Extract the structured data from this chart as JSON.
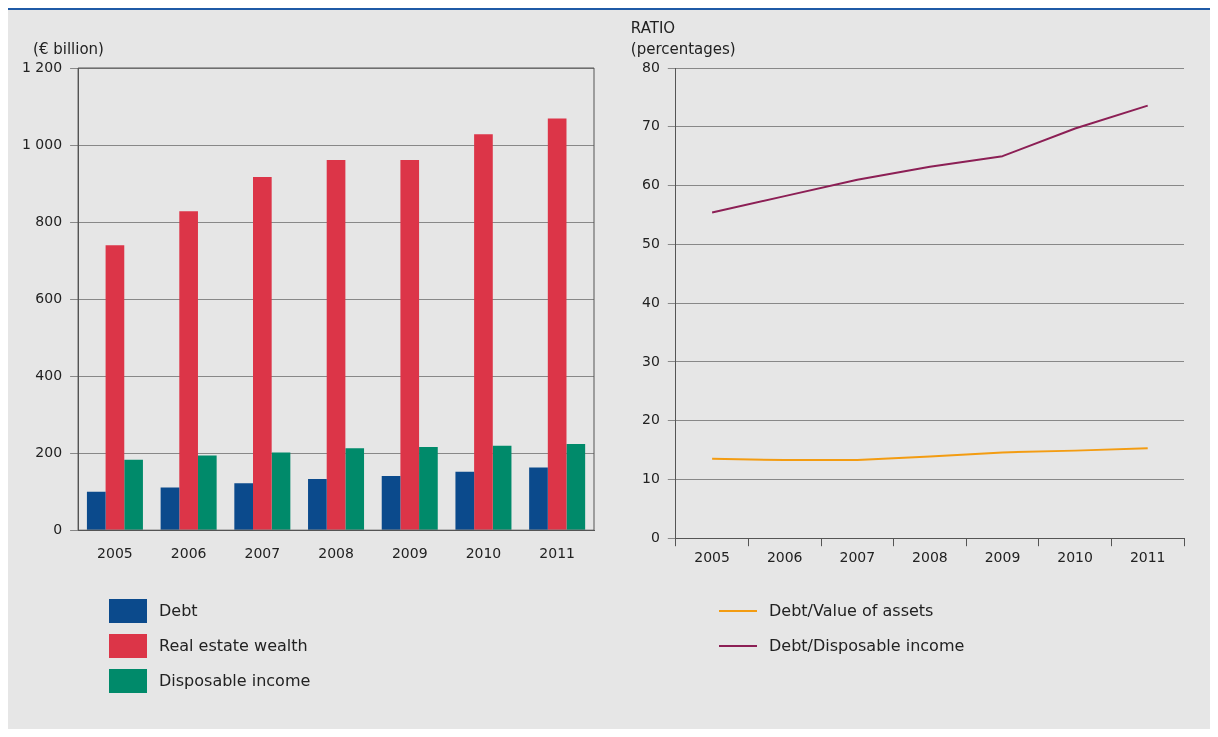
{
  "chart_data": [
    {
      "type": "bar",
      "ylabel": "(€ billion)",
      "categories": [
        "2005",
        "2006",
        "2007",
        "2008",
        "2009",
        "2010",
        "2011"
      ],
      "series": [
        {
          "name": "Debt",
          "color": "#0b4a8c",
          "values": [
            100,
            111,
            122,
            133,
            141,
            152,
            163
          ]
        },
        {
          "name": "Real estate wealth",
          "color": "#dc3548",
          "values": [
            740,
            828,
            917,
            961,
            961,
            1028,
            1069
          ]
        },
        {
          "name": "Disposable income",
          "color": "#008a6a",
          "values": [
            183,
            194,
            202,
            213,
            216,
            219,
            224
          ]
        }
      ],
      "ylim": [
        0,
        1200
      ],
      "yticks": [
        0,
        200,
        400,
        600,
        800,
        {
          "value": 1000,
          "label": "1 000"
        },
        {
          "value": 1200,
          "label": "1 200"
        }
      ],
      "grid": "y",
      "legend": "bottom"
    },
    {
      "type": "line",
      "title": "RATIO",
      "ylabel": "(percentages)",
      "categories": [
        "2005",
        "2006",
        "2007",
        "2008",
        "2009",
        "2010",
        "2011"
      ],
      "series": [
        {
          "name": "Debt/Value of assets",
          "color": "#f39c12",
          "values": [
            13.5,
            13.3,
            13.3,
            13.9,
            14.6,
            14.9,
            15.3
          ]
        },
        {
          "name": "Debt/Disposable income",
          "color": "#8c1f55",
          "values": [
            55.4,
            58.2,
            61,
            63.2,
            65,
            69.7,
            73.6
          ]
        }
      ],
      "ylim": [
        0,
        80
      ],
      "yticks": [
        0,
        10,
        20,
        30,
        40,
        50,
        60,
        70,
        80
      ],
      "grid": "y",
      "legend": "bottom",
      "marker": "none",
      "line_style": "solid"
    }
  ]
}
